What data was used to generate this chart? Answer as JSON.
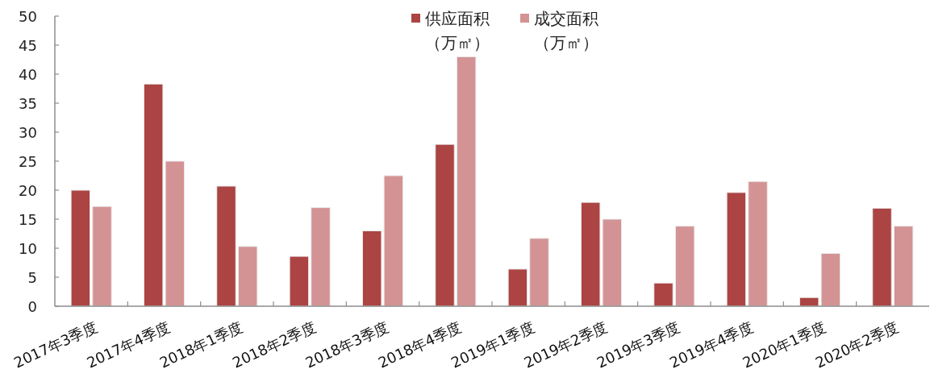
{
  "chart_data": {
    "type": "bar",
    "categories": [
      "2017年3季度",
      "2017年4季度",
      "2018年1季度",
      "2018年2季度",
      "2018年3季度",
      "2018年4季度",
      "2019年1季度",
      "2019年2季度",
      "2019年3季度",
      "2019年4季度",
      "2020年1季度",
      "2020年2季度"
    ],
    "series": [
      {
        "name": "供应面积（万㎡）",
        "color": "#ab4443",
        "values": [
          20.0,
          38.3,
          20.7,
          8.6,
          13.0,
          27.9,
          6.4,
          17.9,
          4.0,
          19.6,
          1.5,
          16.9
        ]
      },
      {
        "name": "成交面积（万㎡）",
        "color": "#d39394",
        "values": [
          17.2,
          25.0,
          10.3,
          17.0,
          22.5,
          43.0,
          11.7,
          15.0,
          13.8,
          21.5,
          9.1,
          13.8
        ]
      }
    ],
    "ylim": [
      0,
      50
    ],
    "yticks": [
      0,
      5,
      10,
      15,
      20,
      25,
      30,
      35,
      40,
      45,
      50
    ],
    "legend": "top"
  }
}
